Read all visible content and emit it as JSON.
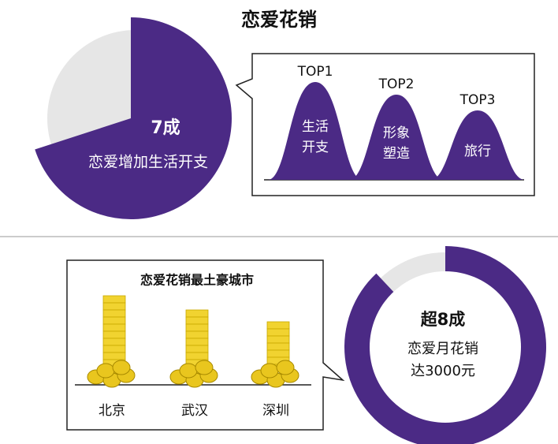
{
  "title": "恋爱花销",
  "pie": {
    "value": 7,
    "label": "7成",
    "caption": "恋爱增加生活开支"
  },
  "top_list": [
    {
      "rank": "TOP1",
      "label": [
        "生活",
        "开支"
      ]
    },
    {
      "rank": "TOP2",
      "label": [
        "形象",
        "塑造"
      ]
    },
    {
      "rank": "TOP3",
      "label": [
        "旅行"
      ]
    }
  ],
  "cities": {
    "title": "恋爱花销最土豪城市",
    "items": [
      "北京",
      "武汉",
      "深圳"
    ]
  },
  "donut": {
    "value": 8.8,
    "label": "超8成",
    "caption": [
      "恋爱月花销",
      "达3000元"
    ]
  }
}
